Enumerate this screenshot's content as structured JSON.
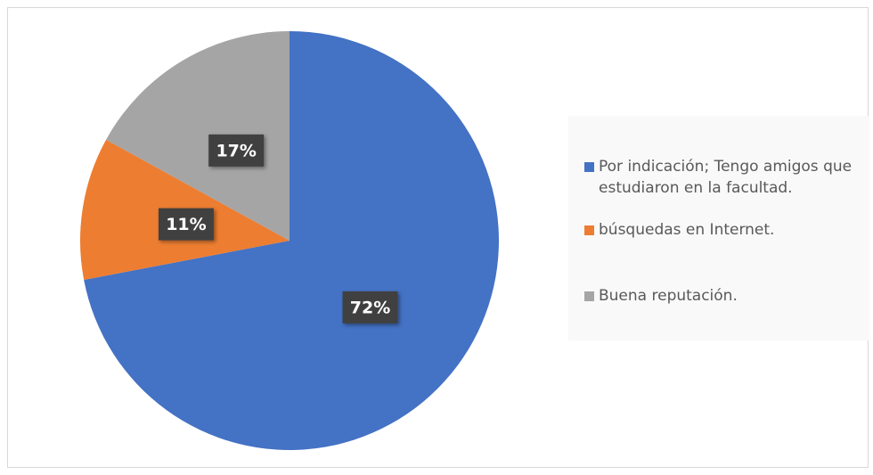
{
  "chart_data": {
    "type": "pie",
    "categories": [
      "Por indicación; Tengo amigos que estudiaron en la facultad.",
      "búsquedas en Internet.",
      "Buena reputación."
    ],
    "values": [
      72,
      11,
      17
    ],
    "value_labels": [
      "72%",
      "11%",
      "17%"
    ],
    "colors": [
      "#4472c4",
      "#ed7d31",
      "#a5a5a5"
    ],
    "legend": "right"
  }
}
